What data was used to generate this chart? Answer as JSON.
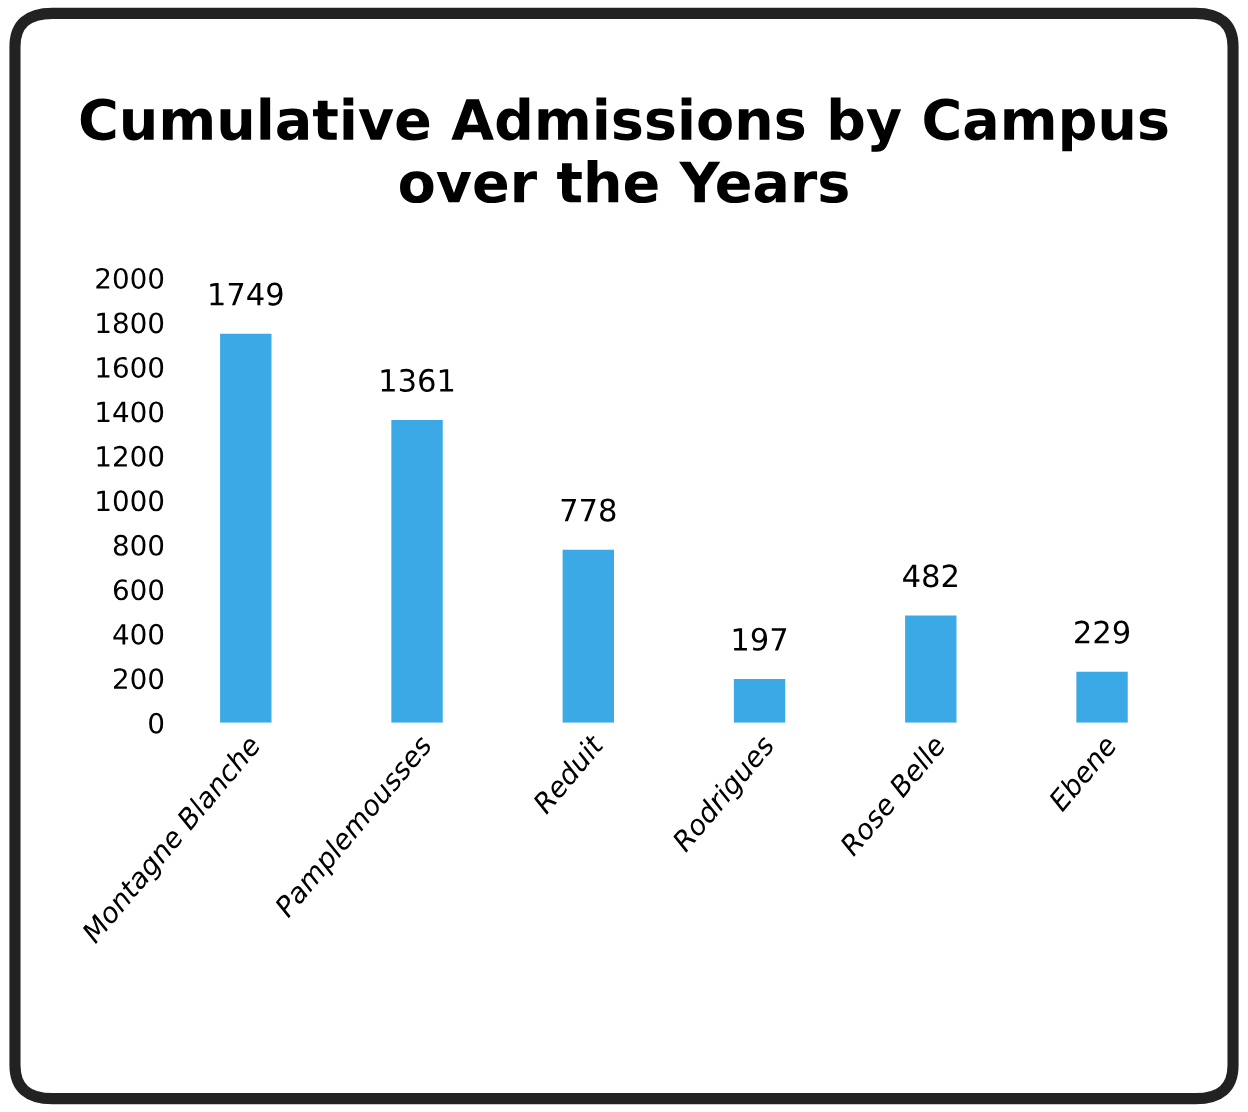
{
  "chart_data": {
    "type": "bar",
    "title": "Cumulative Admissions by Campus over the Years",
    "categories": [
      "Montagne Blanche",
      "Pamplemousses",
      "Reduit",
      "Rodrigues",
      "Rose Belle",
      "Ebene"
    ],
    "values": [
      1749,
      1361,
      778,
      197,
      482,
      229
    ],
    "color": "#3aa9e6",
    "ylim": [
      0,
      2000
    ],
    "yticks": [
      0,
      200,
      400,
      600,
      800,
      1000,
      1200,
      1400,
      1600,
      1800,
      2000
    ],
    "grid": false,
    "data_labels": true
  }
}
